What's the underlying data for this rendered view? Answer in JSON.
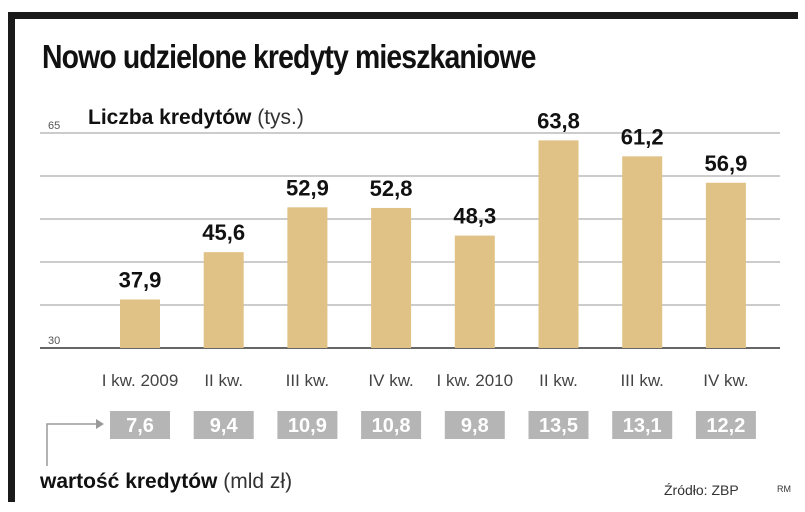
{
  "title": "Nowo udzielone kredyty mieszkaniowe",
  "chart_data": {
    "type": "bar",
    "ylabel_bold": "Liczba kredytów",
    "ylabel_unit": "(tys.)",
    "ylim": [
      30,
      65
    ],
    "yticks": [
      30,
      65
    ],
    "grid": true,
    "categories": [
      "I kw. 2009",
      "II kw.",
      "III kw.",
      "IV kw.",
      "I kw. 2010",
      "II kw.",
      "III kw.",
      "IV kw."
    ],
    "series": [
      {
        "values": [
          37.9,
          45.6,
          52.9,
          52.8,
          48.3,
          63.8,
          61.2,
          56.9
        ],
        "labels": [
          "37,9",
          "45,6",
          "52,9",
          "52,8",
          "48,3",
          "63,8",
          "61,2",
          "56,9"
        ]
      }
    ],
    "secondary_values": [
      7.6,
      9.4,
      10.9,
      10.8,
      9.8,
      13.5,
      13.1,
      12.2
    ],
    "secondary_labels": [
      "7,6",
      "9,4",
      "10,9",
      "10,8",
      "9,8",
      "13,5",
      "13,1",
      "12,2"
    ],
    "secondary_label_bold": "wartość kredytów",
    "secondary_label_unit": "(mld zł)",
    "colors": {
      "bar": "#e0c286",
      "box": "#b5b5b5",
      "grid": "#9a9a9a",
      "axis": "#333333"
    }
  },
  "source": "Źródło: ZBP",
  "credit": "RM"
}
